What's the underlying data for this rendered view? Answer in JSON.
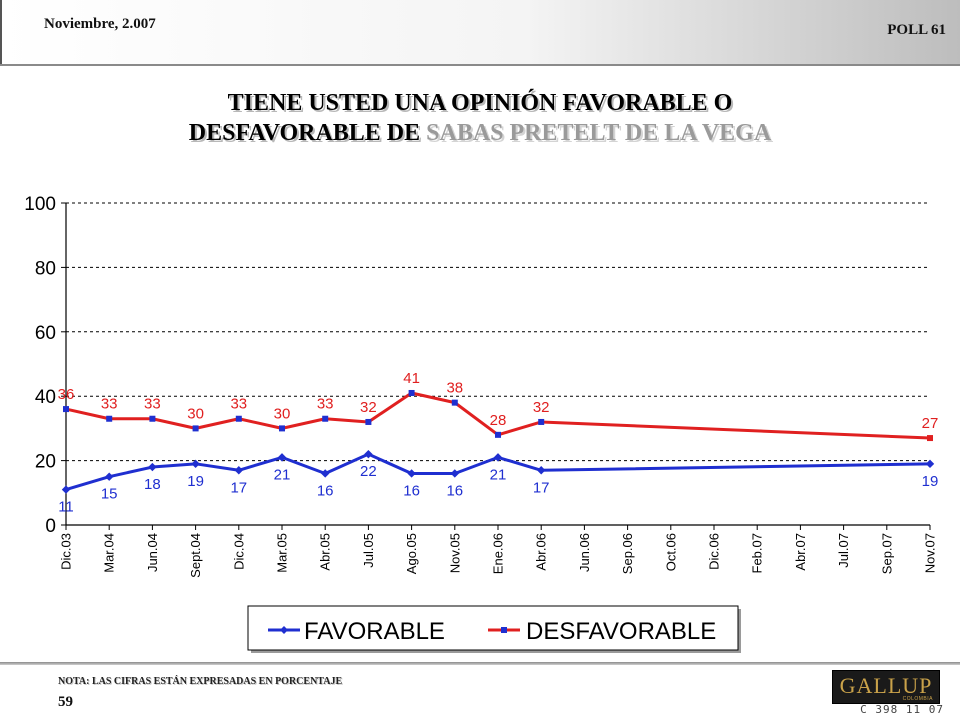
{
  "header": {
    "date": "Noviembre, 2.007",
    "poll": "POLL 61"
  },
  "title": {
    "line1": "TIENE USTED UNA OPINIÓN FAVORABLE O",
    "line2_prefix": "DESFAVORABLE DE ",
    "line2_name": "SABAS PRETELT DE LA VEGA"
  },
  "chart_data": {
    "type": "line",
    "categories": [
      "Dic.03",
      "Mar.04",
      "Jun.04",
      "Sept.04",
      "Dic.04",
      "Mar.05",
      "Abr.05",
      "Jul.05",
      "Ago.05",
      "Nov.05",
      "Ene.06",
      "Abr.06",
      "Jun.06",
      "Sep.06",
      "Oct.06",
      "Dic.06",
      "Feb.07",
      "Abr.07",
      "Jul.07",
      "Sep.07",
      "Nov.07"
    ],
    "ylim": [
      0,
      100
    ],
    "yticks": [
      0,
      20,
      40,
      60,
      80,
      100
    ],
    "grid": true,
    "legend": "bottom",
    "series": [
      {
        "name": "FAVORABLE",
        "line_color": "#1f2fd0",
        "marker_color": "#1f2fd0",
        "label_color": "#1f2fd0",
        "values": [
          11,
          15,
          18,
          19,
          17,
          21,
          16,
          22,
          16,
          16,
          21,
          17,
          null,
          null,
          null,
          null,
          null,
          null,
          null,
          null,
          19
        ],
        "labels": [
          "11",
          "15",
          "18",
          "19",
          "17",
          "21",
          "16",
          "22",
          "16",
          "16",
          "21",
          "17",
          "",
          "",
          "",
          "",
          "",
          "",
          "",
          "",
          "19"
        ]
      },
      {
        "name": "DESFAVORABLE",
        "line_color": "#e02020",
        "marker_color": "#1f2fd0",
        "label_color": "#e02020",
        "values": [
          36,
          33,
          33,
          30,
          33,
          30,
          33,
          32,
          41,
          38,
          28,
          32,
          null,
          null,
          null,
          null,
          null,
          null,
          null,
          null,
          27
        ],
        "labels": [
          "36",
          "33",
          "33",
          "30",
          "33",
          "30",
          "33",
          "32",
          "41",
          "38",
          "28",
          "32",
          "",
          "",
          "",
          "",
          "",
          "",
          "",
          "",
          "27"
        ]
      }
    ]
  },
  "footer": {
    "note": "NOTA: LAS CIFRAS ESTÁN EXPRESADAS EN PORCENTAJE",
    "page": "59",
    "logo": {
      "word": "GALLUP",
      "sub": "COLOMBIA"
    },
    "code": "C 398 11 07"
  }
}
